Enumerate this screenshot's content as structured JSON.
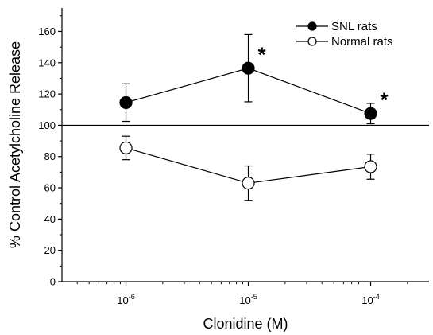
{
  "chart_data": {
    "type": "line",
    "xlabel": "Clonidine (M)",
    "ylabel": "% Control Acetylcholine Release",
    "x_scale": "log",
    "x_ticks": [
      {
        "base": "10",
        "exp": "-6"
      },
      {
        "base": "10",
        "exp": "-5"
      },
      {
        "base": "10",
        "exp": "-4"
      }
    ],
    "x": [
      1e-06,
      1e-05,
      0.0001
    ],
    "xlim": [
      3e-07,
      0.0003
    ],
    "ylim": [
      0,
      175
    ],
    "y_ticks": [
      "0",
      "20",
      "40",
      "60",
      "80",
      "100",
      "120",
      "140",
      "160"
    ],
    "y_tick_values": [
      0,
      20,
      40,
      60,
      80,
      100,
      120,
      140,
      160
    ],
    "reference_line_y": 100,
    "grid": false,
    "legend_position": "top-right",
    "series": [
      {
        "name": "SNL rats",
        "marker": "filled-circle",
        "color": "#000000",
        "values": [
          114.5,
          136.5,
          107.5
        ],
        "errors": [
          12,
          21.5,
          6.5
        ],
        "annotations": [
          "",
          "*",
          "*"
        ]
      },
      {
        "name": "Normal rats",
        "marker": "open-circle",
        "color": "#000000",
        "values": [
          85.5,
          63,
          73.5
        ],
        "errors": [
          7.5,
          11,
          8
        ],
        "annotations": [
          "",
          "",
          ""
        ]
      }
    ]
  }
}
